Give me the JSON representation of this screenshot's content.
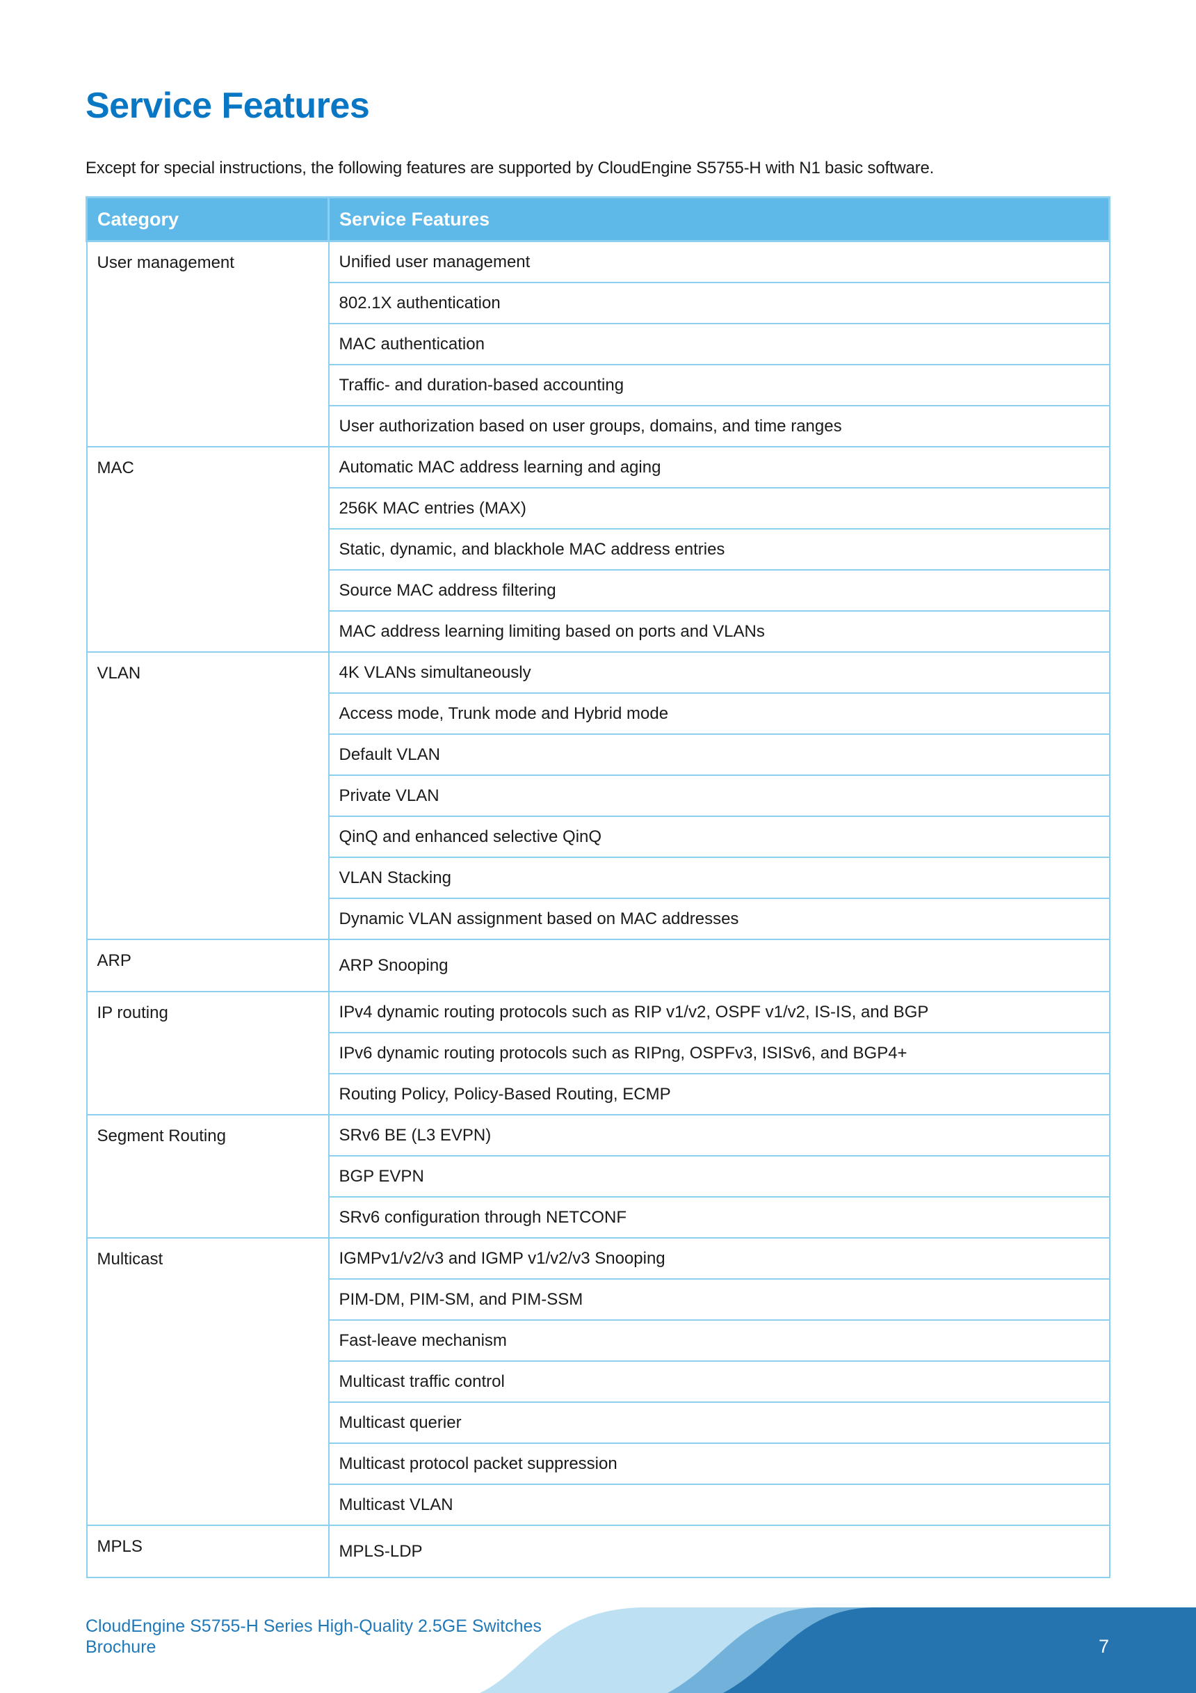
{
  "title": "Service Features",
  "intro": "Except for special instructions, the following features are supported by CloudEngine S5755-H with N1 basic software.",
  "table": {
    "headers": [
      "Category",
      "Service Features"
    ],
    "groups": [
      {
        "category": "User management",
        "features": [
          "Unified user management",
          "802.1X authentication",
          "MAC authentication",
          "Traffic- and duration-based accounting",
          "User authorization based on user groups, domains, and time ranges"
        ]
      },
      {
        "category": "MAC",
        "features": [
          "Automatic MAC address learning and aging",
          "256K MAC entries (MAX)",
          "Static, dynamic, and blackhole MAC address entries",
          "Source MAC address filtering",
          "MAC address learning limiting based on ports and VLANs"
        ]
      },
      {
        "category": "VLAN",
        "features": [
          "4K VLANs simultaneously",
          "Access mode, Trunk mode and Hybrid mode",
          "Default VLAN",
          "Private VLAN",
          "QinQ and enhanced selective QinQ",
          "VLAN Stacking",
          "Dynamic VLAN assignment based on MAC addresses"
        ]
      },
      {
        "category": "ARP",
        "features": [
          "ARP Snooping"
        ]
      },
      {
        "category": "IP routing",
        "features": [
          "IPv4 dynamic routing protocols such as RIP v1/v2, OSPF v1/v2, IS-IS, and BGP",
          "IPv6 dynamic routing protocols such as RIPng, OSPFv3, ISISv6, and BGP4+",
          "Routing Policy, Policy-Based Routing, ECMP"
        ]
      },
      {
        "category": "Segment Routing",
        "features": [
          "SRv6 BE (L3 EVPN)",
          "BGP EVPN",
          "SRv6 configuration through NETCONF"
        ]
      },
      {
        "category": "Multicast",
        "features": [
          "IGMPv1/v2/v3 and IGMP v1/v2/v3 Snooping",
          "PIM-DM, PIM-SM, and PIM-SSM",
          "Fast-leave mechanism",
          "Multicast traffic control",
          "Multicast querier",
          "Multicast protocol packet suppression",
          "Multicast VLAN"
        ]
      },
      {
        "category": "MPLS",
        "features": [
          "MPLS-LDP"
        ]
      }
    ]
  },
  "footer": {
    "line1": "CloudEngine S5755-H Series High-Quality 2.5GE Switches",
    "line2": "Brochure",
    "page_number": "7"
  },
  "colors": {
    "title": "#0a77c4",
    "header_bg": "#5eb8e8",
    "border": "#8ccfee",
    "footer_text": "#1f78b8",
    "wave_light": "#bde0f2",
    "wave_mid": "#72b2da",
    "wave_dark": "#2574b0"
  }
}
